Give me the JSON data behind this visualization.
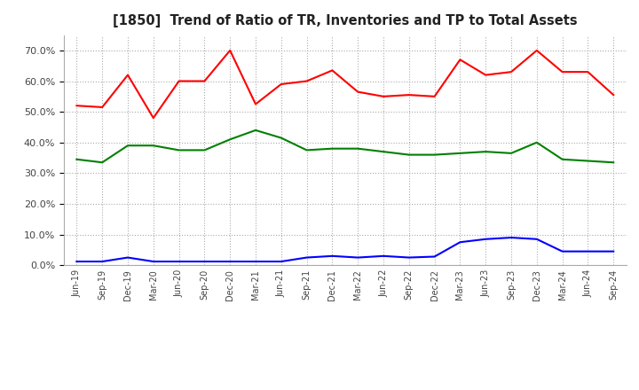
{
  "title": "[1850]  Trend of Ratio of TR, Inventories and TP to Total Assets",
  "x_labels": [
    "Jun-19",
    "Sep-19",
    "Dec-19",
    "Mar-20",
    "Jun-20",
    "Sep-20",
    "Dec-20",
    "Mar-21",
    "Jun-21",
    "Sep-21",
    "Dec-21",
    "Mar-22",
    "Jun-22",
    "Sep-22",
    "Dec-22",
    "Mar-23",
    "Jun-23",
    "Sep-23",
    "Dec-23",
    "Mar-24",
    "Jun-24",
    "Sep-24"
  ],
  "trade_receivables": [
    0.52,
    0.515,
    0.62,
    0.48,
    0.6,
    0.6,
    0.7,
    0.525,
    0.59,
    0.6,
    0.635,
    0.565,
    0.55,
    0.555,
    0.55,
    0.67,
    0.62,
    0.63,
    0.7,
    0.63,
    0.63,
    0.555
  ],
  "inventories": [
    0.012,
    0.012,
    0.025,
    0.012,
    0.012,
    0.012,
    0.012,
    0.012,
    0.012,
    0.025,
    0.03,
    0.025,
    0.03,
    0.025,
    0.028,
    0.075,
    0.085,
    0.09,
    0.085,
    0.045,
    0.045,
    0.045
  ],
  "trade_payables": [
    0.345,
    0.335,
    0.39,
    0.39,
    0.375,
    0.375,
    0.41,
    0.44,
    0.415,
    0.375,
    0.38,
    0.38,
    0.37,
    0.36,
    0.36,
    0.365,
    0.37,
    0.365,
    0.4,
    0.345,
    0.34,
    0.335
  ],
  "tr_color": "#FF0000",
  "inv_color": "#0000FF",
  "tp_color": "#008000",
  "background_color": "#FFFFFF",
  "grid_color": "#AAAAAA",
  "ylim": [
    0.0,
    0.75
  ],
  "yticks": [
    0.0,
    0.1,
    0.2,
    0.3,
    0.4,
    0.5,
    0.6,
    0.7
  ]
}
